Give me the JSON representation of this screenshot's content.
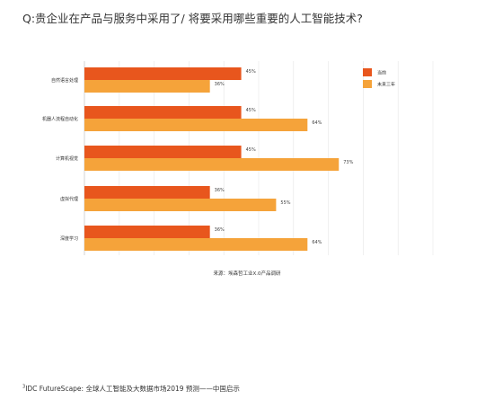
{
  "title": "Q:贵企业在产品与服务中采用了/ 将要采用哪些重要的人工智能技术?",
  "source": "来源：埃森哲工业X.0产品调研",
  "footnote": {
    "mark": "3",
    "text": "IDC FutureScape: 全球人工智能及大数据市场2019 预测——中国启示"
  },
  "colors": {
    "current": "#e8561d",
    "future": "#f5a33a"
  },
  "chart_data": {
    "type": "bar",
    "orientation": "horizontal",
    "categories": [
      "自然语言处理",
      "机器人流程自动化",
      "计算机视觉",
      "虚拟代理",
      "深度学习"
    ],
    "series": [
      {
        "name": "当前",
        "values": [
          45,
          45,
          45,
          36,
          36
        ],
        "labels": [
          "45%",
          "45%",
          "45%",
          "36%",
          "36%"
        ]
      },
      {
        "name": "未来三年",
        "values": [
          36,
          64,
          73,
          55,
          64
        ],
        "labels": [
          "36%",
          "64%",
          "73%",
          "55%",
          "64%"
        ]
      }
    ],
    "xlim": [
      0,
      100
    ],
    "unit": "%",
    "grid": true,
    "legend_position": "top-right"
  }
}
